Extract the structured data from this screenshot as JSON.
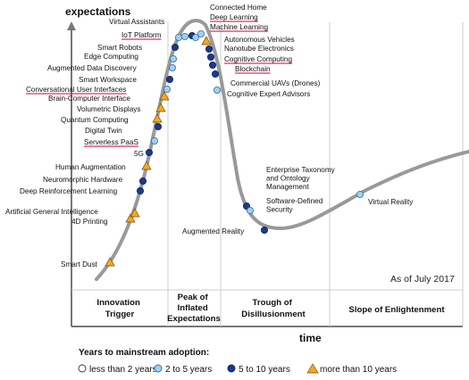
{
  "chart_data": {
    "type": "scatter",
    "ylabel": "expectations",
    "xlabel": "time",
    "annotation": "As of July 2017",
    "phases": [
      {
        "id": "innovation",
        "lines": [
          "Innovation",
          "Trigger"
        ]
      },
      {
        "id": "peak",
        "lines": [
          "Peak of",
          "Inflated",
          "Expectations"
        ]
      },
      {
        "id": "trough",
        "lines": [
          "Trough of",
          "Disillusionment"
        ]
      },
      {
        "id": "slope",
        "lines": [
          "Slope of Enlightenment"
        ]
      },
      {
        "id": "plateau",
        "lines": [
          ""
        ]
      }
    ],
    "legend": {
      "title": "Years to mainstream adoption:",
      "items": [
        {
          "key": "lt2",
          "label": "less than 2 years",
          "marker": "circle",
          "color": "#ffffff"
        },
        {
          "key": "2to5",
          "label": "2 to 5 years",
          "marker": "circle",
          "color": "#9fd0ee"
        },
        {
          "key": "5to10",
          "label": "5 to 10 years",
          "marker": "circle",
          "color": "#1a3a8c"
        },
        {
          "key": "gt10",
          "label": "more than 10 years",
          "marker": "triangle",
          "color": "#f5a623"
        }
      ]
    },
    "curve_color": "#999999",
    "points": [
      {
        "name": "Smart Dust",
        "cat": "gt10",
        "underline": false
      },
      {
        "name": "4D Printing",
        "cat": "gt10",
        "underline": false
      },
      {
        "name": "Artificial General Intelligence",
        "cat": "gt10",
        "underline": false
      },
      {
        "name": "Deep Reinforcement Learning",
        "cat": "5to10",
        "underline": false
      },
      {
        "name": "Neuromorphic Hardware",
        "cat": "5to10",
        "underline": false
      },
      {
        "name": "Human Augmentation",
        "cat": "gt10",
        "underline": false
      },
      {
        "name": "5G",
        "cat": "5to10",
        "underline": false
      },
      {
        "name": "Serverless PaaS",
        "cat": "2to5",
        "underline": true
      },
      {
        "name": "Digital Twin",
        "cat": "5to10",
        "underline": false
      },
      {
        "name": "Quantum Computing",
        "cat": "gt10",
        "underline": false
      },
      {
        "name": "Volumetric Displays",
        "cat": "gt10",
        "underline": false
      },
      {
        "name": "Brain-Computer Interface",
        "cat": "gt10",
        "underline": false
      },
      {
        "name": "Conversational User Interfaces",
        "cat": "2to5",
        "underline": true
      },
      {
        "name": "Smart Workspace",
        "cat": "5to10",
        "underline": false
      },
      {
        "name": "Augmented Data Discovery",
        "cat": "2to5",
        "underline": false
      },
      {
        "name": "Edge Computing",
        "cat": "2to5",
        "underline": false
      },
      {
        "name": "Smart Robots",
        "cat": "5to10",
        "underline": false
      },
      {
        "name": "IoT Platform",
        "cat": "2to5",
        "underline": true
      },
      {
        "name": "Virtual Assistants",
        "cat": "2to5",
        "underline": false
      },
      {
        "name": "Connected Home",
        "cat": "5to10",
        "underline": false
      },
      {
        "name": "Deep Learning",
        "cat": "2to5",
        "underline": true
      },
      {
        "name": "Machine Learning",
        "cat": "2to5",
        "underline": true
      },
      {
        "name": "Autonomous Vehicles",
        "cat": "gt10",
        "underline": false
      },
      {
        "name": "Nanotube Electronics",
        "cat": "5to10",
        "underline": false
      },
      {
        "name": "Cognitive Computing",
        "cat": "5to10",
        "underline": true
      },
      {
        "name": "Blockchain",
        "cat": "5to10",
        "underline": true
      },
      {
        "name": "Commercial UAVs (Drones)",
        "cat": "5to10",
        "underline": false
      },
      {
        "name": "Cognitive Expert Advisors",
        "cat": "2to5",
        "underline": false
      },
      {
        "name": "Enterprise Taxonomy and Ontology Management",
        "cat": "5to10",
        "underline": false
      },
      {
        "name": "Software-Defined Security",
        "cat": "2to5",
        "underline": false
      },
      {
        "name": "Augmented Reality",
        "cat": "5to10",
        "underline": false
      },
      {
        "name": "Virtual Reality",
        "cat": "2to5",
        "underline": false
      }
    ]
  }
}
